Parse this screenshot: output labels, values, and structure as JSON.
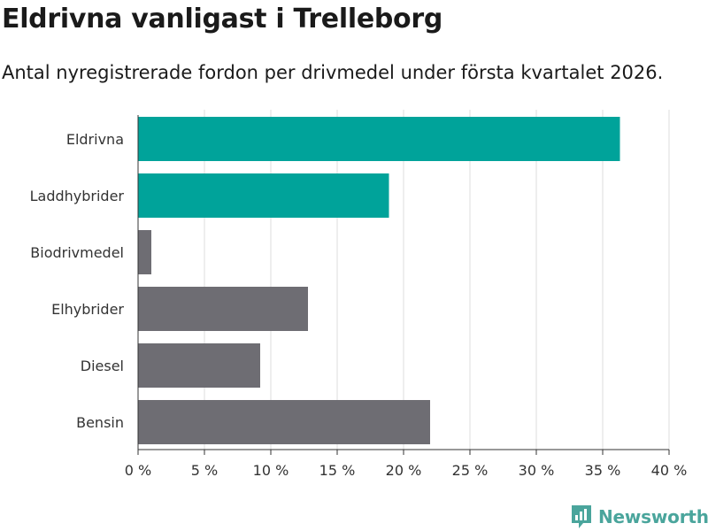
{
  "chart_data": {
    "type": "bar",
    "orientation": "horizontal",
    "title": "Eldrivna vanligast i Trelleborg",
    "subtitle": "Antal nyregistrerade fordon per drivmedel under första kvartalet 2026.",
    "categories": [
      "Eldrivna",
      "Laddhybrider",
      "Biodrivmedel",
      "Elhybrider",
      "Diesel",
      "Bensin"
    ],
    "values": [
      36.3,
      18.9,
      1.0,
      12.8,
      9.2,
      22.0
    ],
    "highlight": [
      true,
      true,
      false,
      false,
      false,
      false
    ],
    "xlim": [
      0,
      40
    ],
    "xticks": [
      0,
      5,
      10,
      15,
      20,
      25,
      30,
      35,
      40
    ],
    "xtick_labels": [
      "0 %",
      "5 %",
      "10 %",
      "15 %",
      "20 %",
      "25 %",
      "30 %",
      "35 %",
      "40 %"
    ],
    "grid": true,
    "xlabel": "",
    "ylabel": ""
  },
  "colors": {
    "highlight": "#00a39a",
    "default": "#6e6d73",
    "grid": "#dcdcdc",
    "brand": "#4aa59c"
  },
  "brand": {
    "name": "Newsworthy",
    "icon": "bar-chart-bubble-icon"
  }
}
